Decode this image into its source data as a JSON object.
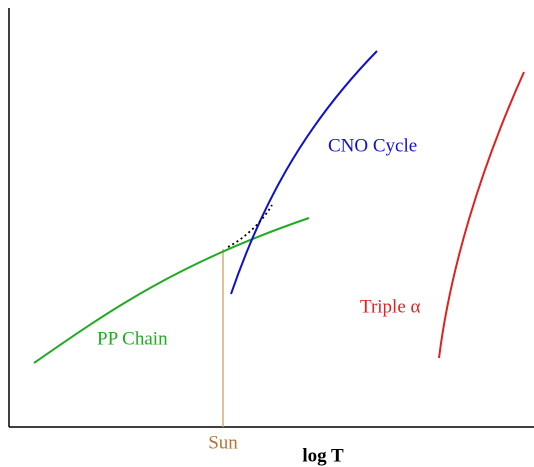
{
  "curves": [
    {
      "label": "CNO Cycle"
    },
    {
      "label": "PP Chain"
    },
    {
      "label": "Triple α"
    }
  ],
  "marker": {
    "label": "Sun"
  },
  "x_axis": {
    "label": "log T"
  }
}
